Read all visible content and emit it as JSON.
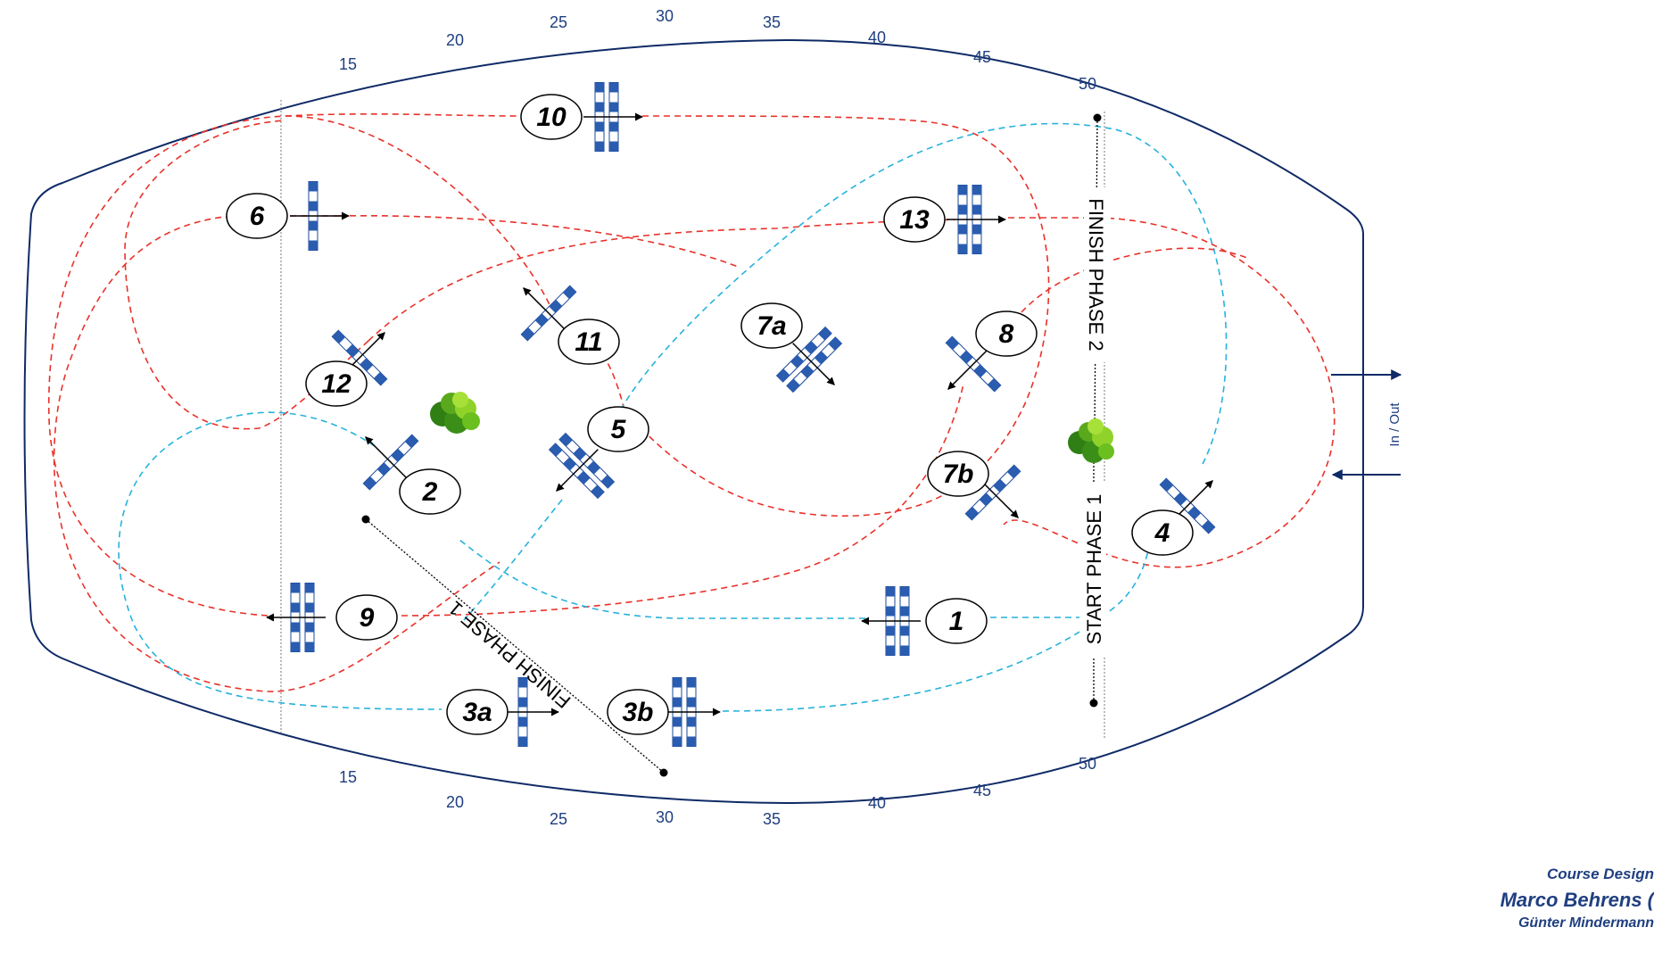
{
  "arena": {
    "scale_top": [
      "15",
      "20",
      "25",
      "30",
      "35",
      "40",
      "45",
      "50"
    ],
    "scale_bottom": [
      "15",
      "20",
      "25",
      "30",
      "35",
      "40",
      "45",
      "50"
    ],
    "gate_label": "In / Out"
  },
  "fences": {
    "f10": "10",
    "f6": "6",
    "f13": "13",
    "f11": "11",
    "f7a": "7a",
    "f8": "8",
    "f12": "12",
    "f5": "5",
    "f2": "2",
    "f7b": "7b",
    "f4": "4",
    "f9": "9",
    "f1": "1",
    "f3a": "3a",
    "f3b": "3b"
  },
  "lines": {
    "finish_phase_1": "FINISH PHASE 1",
    "finish_phase_2": "FINISH PHASE 2",
    "start_phase_1": "START PHASE 1"
  },
  "colors": {
    "outline": "#0f2a66",
    "rail": "#2a5cb0",
    "route_red": "#e8322a",
    "route_blue": "#27b2dc",
    "tree": "#6bbf1e"
  },
  "credits": {
    "title": "Course Design",
    "name1": "Marco Behrens (",
    "name2": "Günter Mindermann"
  }
}
